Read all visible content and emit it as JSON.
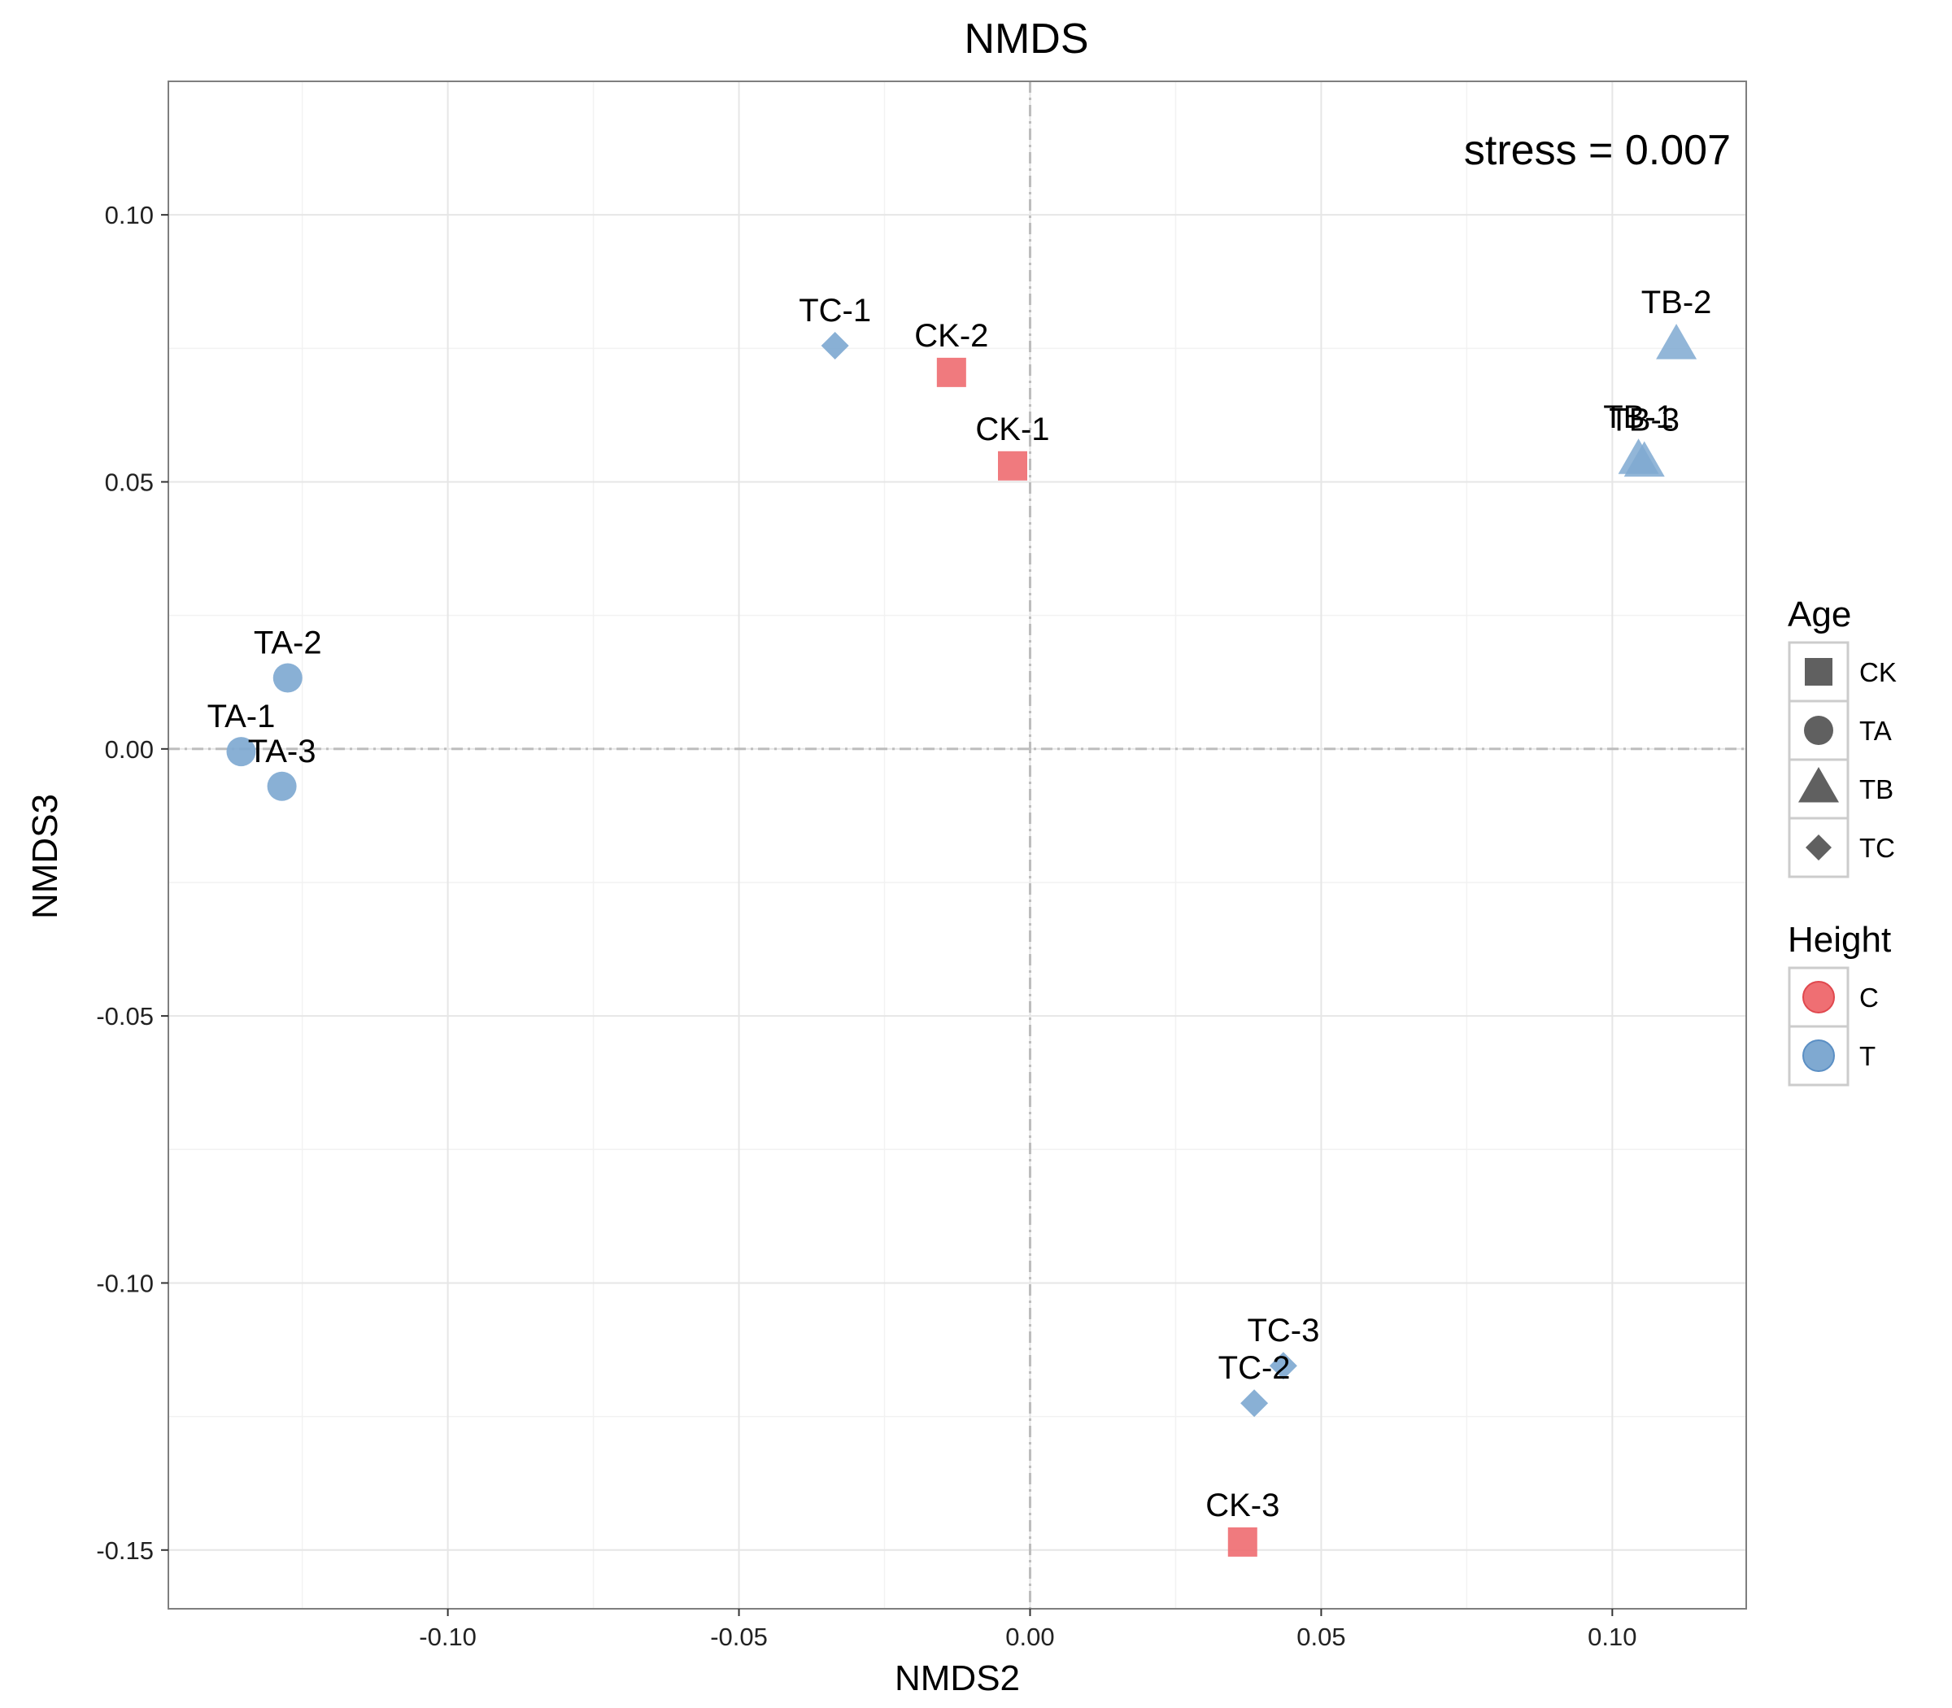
{
  "chart_data": {
    "type": "scatter",
    "title": "NMDS",
    "xlabel": "NMDS2",
    "ylabel": "NMDS3",
    "xlim": [
      -0.148,
      0.123
    ],
    "ylim": [
      -0.161,
      0.125
    ],
    "xticks": [
      -0.1,
      -0.05,
      0.0,
      0.05,
      0.1
    ],
    "yticks": [
      0.1,
      0.05,
      0.0,
      -0.05,
      -0.1,
      -0.15
    ],
    "xtick_labels": [
      "-0.10",
      "-0.05",
      "0.00",
      "0.05",
      "0.10"
    ],
    "ytick_labels": [
      "0.10",
      "0.05",
      "0.00",
      "-0.05",
      "-0.10",
      "-0.15"
    ],
    "grid": true,
    "reference_lines": {
      "x": 0,
      "y": 0
    },
    "annotation": "stress = 0.007",
    "colors": {
      "C": "#ef6f73",
      "T": "#7fa9d1",
      "T_dark": "#5b8fc4"
    },
    "points": [
      {
        "label": "CK-1",
        "x": -0.003,
        "y": 0.053,
        "age": "CK",
        "height": "C"
      },
      {
        "label": "CK-2",
        "x": -0.0135,
        "y": 0.0705,
        "age": "CK",
        "height": "C"
      },
      {
        "label": "CK-3",
        "x": 0.0365,
        "y": -0.1485,
        "age": "CK",
        "height": "C"
      },
      {
        "label": "TA-1",
        "x": -0.1355,
        "y": -0.0005,
        "age": "TA",
        "height": "T"
      },
      {
        "label": "TA-2",
        "x": -0.1275,
        "y": 0.0133,
        "age": "TA",
        "height": "T"
      },
      {
        "label": "TA-3",
        "x": -0.1285,
        "y": -0.007,
        "age": "TA",
        "height": "T"
      },
      {
        "label": "TB-1",
        "x": 0.1045,
        "y": 0.054,
        "age": "TB",
        "height": "T"
      },
      {
        "label": "TB-2",
        "x": 0.111,
        "y": 0.0755,
        "age": "TB",
        "height": "T"
      },
      {
        "label": "TB-3",
        "x": 0.1055,
        "y": 0.0535,
        "age": "TB",
        "height": "T"
      },
      {
        "label": "TC-1",
        "x": -0.0335,
        "y": 0.0755,
        "age": "TC",
        "height": "T"
      },
      {
        "label": "TC-2",
        "x": 0.0385,
        "y": -0.1225,
        "age": "TC",
        "height": "T"
      },
      {
        "label": "TC-3",
        "x": 0.0435,
        "y": -0.1155,
        "age": "TC",
        "height": "T"
      }
    ],
    "legend": {
      "placement": "right",
      "age": {
        "title": "Age",
        "items": [
          {
            "label": "CK",
            "shape": "square"
          },
          {
            "label": "TA",
            "shape": "circle"
          },
          {
            "label": "TB",
            "shape": "triangle"
          },
          {
            "label": "TC",
            "shape": "diamond"
          }
        ]
      },
      "height": {
        "title": "Height",
        "items": [
          {
            "label": "C",
            "color": "#ef6f73"
          },
          {
            "label": "T",
            "color": "#7fa9d1"
          }
        ]
      }
    }
  }
}
